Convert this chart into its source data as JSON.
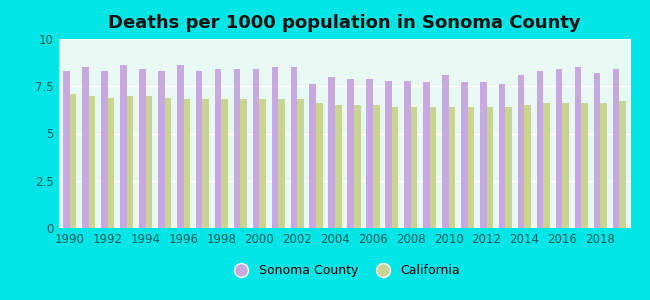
{
  "title": "Deaths per 1000 population in Sonoma County",
  "years": [
    1990,
    1991,
    1992,
    1993,
    1994,
    1995,
    1996,
    1997,
    1998,
    1999,
    2000,
    2001,
    2002,
    2003,
    2004,
    2005,
    2006,
    2007,
    2008,
    2009,
    2010,
    2011,
    2012,
    2013,
    2014,
    2015,
    2016,
    2017,
    2018,
    2019
  ],
  "sonoma": [
    8.3,
    8.5,
    8.3,
    8.6,
    8.4,
    8.3,
    8.6,
    8.3,
    8.4,
    8.4,
    8.4,
    8.5,
    8.5,
    7.6,
    8.0,
    7.9,
    7.9,
    7.8,
    7.8,
    7.7,
    8.1,
    7.7,
    7.7,
    7.6,
    8.1,
    8.3,
    8.4,
    8.5,
    8.2,
    8.4
  ],
  "california": [
    7.1,
    7.0,
    6.9,
    7.0,
    7.0,
    6.9,
    6.8,
    6.8,
    6.8,
    6.8,
    6.8,
    6.8,
    6.8,
    6.6,
    6.5,
    6.5,
    6.5,
    6.4,
    6.4,
    6.4,
    6.4,
    6.4,
    6.4,
    6.4,
    6.5,
    6.6,
    6.6,
    6.6,
    6.6,
    6.7
  ],
  "sonoma_color": "#c8a8e0",
  "california_color": "#c8d490",
  "background_color": "#00e5e5",
  "plot_bg": "#e8f8f2",
  "ylim": [
    0,
    10
  ],
  "yticks": [
    0,
    2.5,
    5,
    7.5,
    10
  ],
  "title_fontsize": 13,
  "bar_width": 0.35,
  "tick_label_color": "#006060"
}
